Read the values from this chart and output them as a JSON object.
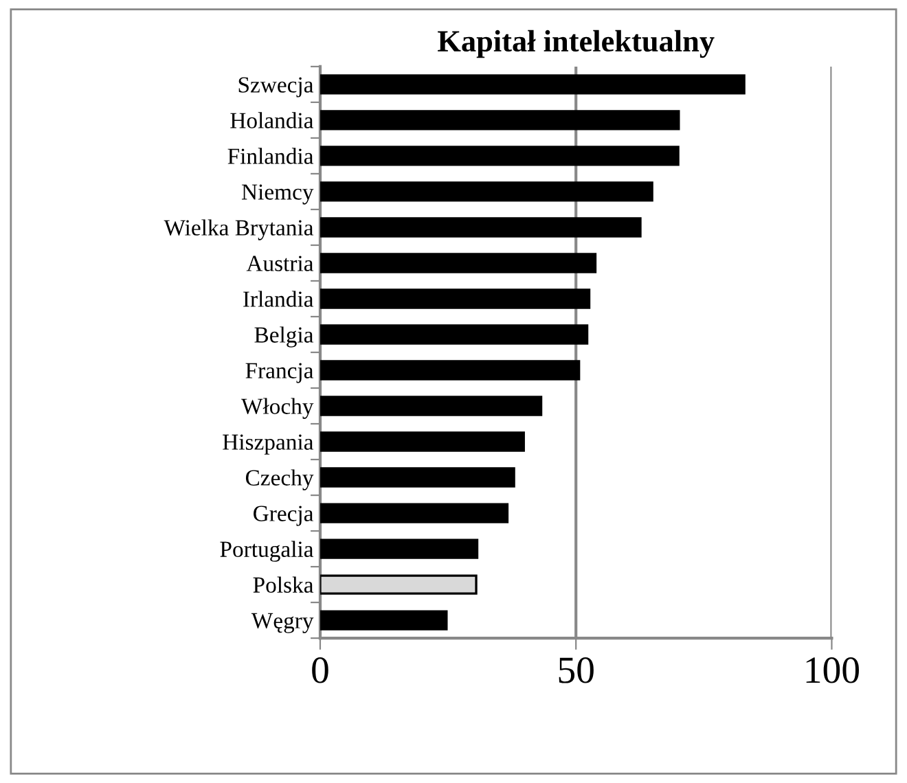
{
  "chart_data": {
    "type": "bar",
    "orientation": "horizontal",
    "title": "Kapitał intelektualny",
    "categories": [
      "Szwecja",
      "Holandia",
      "Finlandia",
      "Niemcy",
      "Wielka Brytania",
      "Austria",
      "Irlandia",
      "Belgia",
      "Francja",
      "Włochy",
      "Hiszpania",
      "Czechy",
      "Grecja",
      "Portugalia",
      "Polska",
      "Węgry"
    ],
    "values": [
      82.9,
      70.1,
      70,
      64.9,
      62.6,
      53.8,
      52.6,
      52.2,
      50.6,
      43.2,
      39.8,
      37.9,
      36.6,
      30.7,
      30.5,
      24.7
    ],
    "colors": [
      "#000000",
      "#000000",
      "#000000",
      "#000000",
      "#000000",
      "#000000",
      "#000000",
      "#000000",
      "#000000",
      "#000000",
      "#000000",
      "#000000",
      "#000000",
      "#000000",
      "#d9d9d9",
      "#000000"
    ],
    "xlim": [
      0,
      100
    ],
    "xticks": [
      0,
      50,
      100
    ],
    "grid": "x",
    "legend": false
  }
}
